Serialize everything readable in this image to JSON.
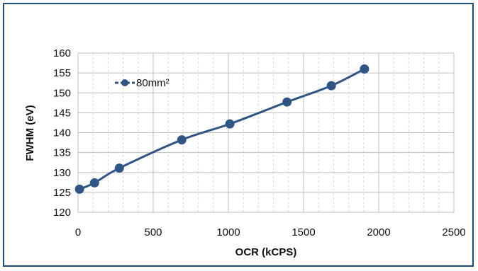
{
  "chart_data": {
    "type": "line",
    "title": "",
    "xlabel": "OCR (kCPS)",
    "ylabel": "FWHM (eV)",
    "xlim": [
      0,
      2500
    ],
    "ylim": [
      120,
      160
    ],
    "x_ticks": [
      "0",
      "500",
      "1000",
      "1500",
      "2000",
      "2500"
    ],
    "y_ticks": [
      "120",
      "125",
      "130",
      "135",
      "140",
      "145",
      "150",
      "155",
      "160"
    ],
    "x_tick_values": [
      0,
      500,
      1000,
      1500,
      2000,
      2500
    ],
    "y_tick_values": [
      120,
      125,
      130,
      135,
      140,
      145,
      150,
      155,
      160
    ],
    "x_minor_step": 100,
    "grid": true,
    "legend_position": "top-left",
    "series": [
      {
        "name": "80mm²",
        "color": "#2f5584",
        "marker": "circle",
        "x": [
          10,
          110,
          275,
          690,
          1010,
          1390,
          1685,
          1905
        ],
        "y": [
          125.8,
          127.4,
          131.1,
          138.2,
          142.2,
          147.7,
          151.8,
          156.0
        ]
      }
    ]
  }
}
